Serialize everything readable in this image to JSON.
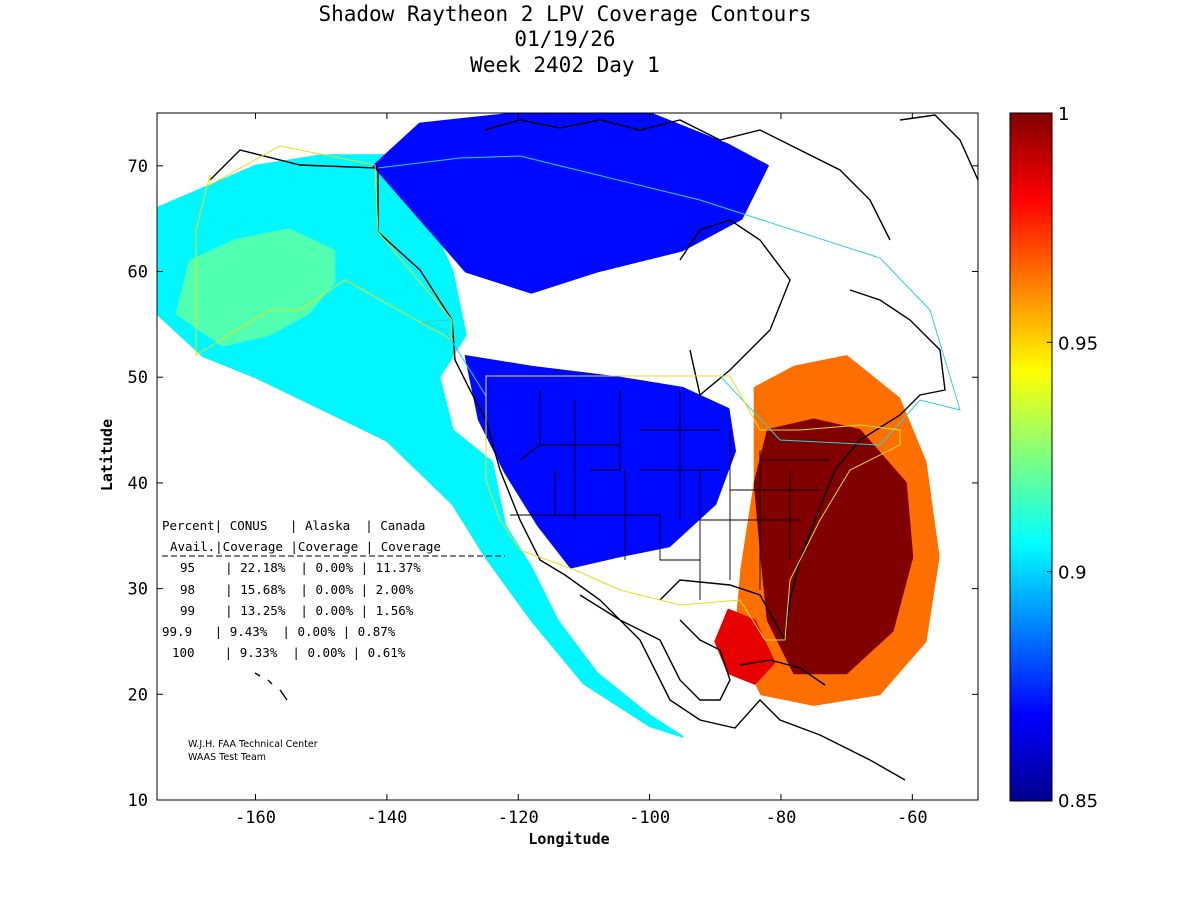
{
  "chart_data": {
    "type": "heatmap",
    "title_lines": [
      "Shadow Raytheon 2 LPV Coverage Contours",
      "01/19/26",
      "Week 2402 Day 1"
    ],
    "xlabel": "Longitude",
    "ylabel": "Latitude",
    "xlim": [
      -175,
      -50
    ],
    "ylim": [
      10,
      75
    ],
    "xticks": [
      -160,
      -140,
      -120,
      -100,
      -80,
      -60
    ],
    "yticks": [
      10,
      20,
      30,
      40,
      50,
      60,
      70
    ],
    "xtick_labels": [
      "-160",
      "-140",
      "-120",
      "-100",
      "-80",
      "-60"
    ],
    "ytick_labels": [
      "10",
      "20",
      "30",
      "40",
      "50",
      "60",
      "70"
    ],
    "colorbar": {
      "range": [
        0.85,
        1
      ],
      "ticks": [
        0.85,
        0.9,
        0.95,
        1
      ],
      "tick_labels": [
        "0.85",
        "0.9",
        "0.95",
        "1"
      ],
      "colormap": "jet"
    },
    "coverage_regions": [
      {
        "name": "western-pacific-arc",
        "level": 0.905,
        "polygon": [
          [
            -175,
            66
          ],
          [
            -160,
            70
          ],
          [
            -150,
            71
          ],
          [
            -140,
            71
          ],
          [
            -135,
            67
          ],
          [
            -130,
            60
          ],
          [
            -128,
            54
          ],
          [
            -132,
            50
          ],
          [
            -130,
            45
          ],
          [
            -124,
            42
          ],
          [
            -122,
            36
          ],
          [
            -118,
            32
          ],
          [
            -114,
            27
          ],
          [
            -108,
            22
          ],
          [
            -100,
            18
          ],
          [
            -95,
            16
          ],
          [
            -100,
            17
          ],
          [
            -110,
            21
          ],
          [
            -118,
            27
          ],
          [
            -125,
            33
          ],
          [
            -130,
            38
          ],
          [
            -140,
            44
          ],
          [
            -150,
            47
          ],
          [
            -160,
            50
          ],
          [
            -168,
            52
          ],
          [
            -175,
            56
          ]
        ]
      },
      {
        "name": "alaska-green",
        "level": 0.918,
        "polygon": [
          [
            -172,
            56
          ],
          [
            -165,
            53
          ],
          [
            -158,
            54
          ],
          [
            -152,
            56
          ],
          [
            -148,
            59
          ],
          [
            -148,
            62
          ],
          [
            -155,
            64
          ],
          [
            -163,
            63
          ],
          [
            -170,
            61
          ]
        ]
      },
      {
        "name": "north-low-coverage",
        "level": 0.87,
        "polygon": [
          [
            -142,
            70
          ],
          [
            -135,
            74
          ],
          [
            -120,
            75
          ],
          [
            -100,
            75
          ],
          [
            -88,
            72
          ],
          [
            -82,
            70
          ],
          [
            -86,
            65
          ],
          [
            -95,
            62
          ],
          [
            -108,
            60
          ],
          [
            -118,
            58
          ],
          [
            -128,
            60
          ],
          [
            -135,
            65
          ]
        ]
      },
      {
        "name": "conus-low-coverage",
        "level": 0.87,
        "polygon": [
          [
            -128,
            52
          ],
          [
            -118,
            51
          ],
          [
            -105,
            50
          ],
          [
            -95,
            49
          ],
          [
            -88,
            47
          ],
          [
            -87,
            43
          ],
          [
            -90,
            38
          ],
          [
            -97,
            34
          ],
          [
            -105,
            33
          ],
          [
            -112,
            32
          ],
          [
            -117,
            36
          ],
          [
            -122,
            41
          ],
          [
            -126,
            46
          ]
        ]
      },
      {
        "name": "east-high-coverage",
        "level": 0.965,
        "polygon": [
          [
            -84,
            49
          ],
          [
            -78,
            51
          ],
          [
            -70,
            52
          ],
          [
            -62,
            48
          ],
          [
            -58,
            42
          ],
          [
            -56,
            33
          ],
          [
            -58,
            25
          ],
          [
            -65,
            20
          ],
          [
            -75,
            19
          ],
          [
            -83,
            20
          ],
          [
            -87,
            25
          ],
          [
            -86,
            32
          ],
          [
            -84,
            40
          ]
        ]
      },
      {
        "name": "east-peak-coverage",
        "level": 1.0,
        "polygon": [
          [
            -82,
            45
          ],
          [
            -75,
            46
          ],
          [
            -68,
            45
          ],
          [
            -61,
            40
          ],
          [
            -60,
            33
          ],
          [
            -63,
            26
          ],
          [
            -70,
            22
          ],
          [
            -78,
            22
          ],
          [
            -82,
            27
          ],
          [
            -83,
            33
          ],
          [
            -84,
            40
          ]
        ]
      },
      {
        "name": "gulf-red",
        "level": 0.985,
        "polygon": [
          [
            -88,
            28
          ],
          [
            -84,
            27
          ],
          [
            -81,
            23
          ],
          [
            -84,
            21
          ],
          [
            -88,
            22
          ],
          [
            -90,
            25
          ]
        ]
      }
    ],
    "no_coverage_holes": [
      {
        "name": "hudson-bay-hole",
        "polygon": [
          [
            -126,
            54
          ],
          [
            -120,
            57
          ],
          [
            -108,
            59
          ],
          [
            -96,
            59
          ],
          [
            -90,
            57
          ],
          [
            -88,
            54
          ],
          [
            -95,
            51
          ],
          [
            -110,
            51
          ],
          [
            -122,
            52
          ]
        ]
      },
      {
        "name": "northeast-canada-hole",
        "polygon": [
          [
            -80,
            75
          ],
          [
            -72,
            70
          ],
          [
            -64,
            66
          ],
          [
            -58,
            62
          ],
          [
            -50,
            62
          ],
          [
            -50,
            75
          ]
        ]
      }
    ],
    "coverage_table": {
      "header_row1": "Percent| CONUS   | Alaska  | Canada",
      "header_row2": "Avail.|Coverage |Coverage | Coverage",
      "rows": [
        "95    | 22.18%  | 0.00% | 11.37%",
        "98    | 15.68%  | 0.00% | 2.00%",
        "99    | 13.25%  | 0.00% | 1.56%",
        "99.9   | 9.43%  | 0.00% | 0.87%",
        "100    | 9.33%  | 0.00% | 0.61%"
      ]
    },
    "credit_lines": [
      "W.J.H. FAA Technical Center",
      "WAAS Test Team"
    ]
  }
}
